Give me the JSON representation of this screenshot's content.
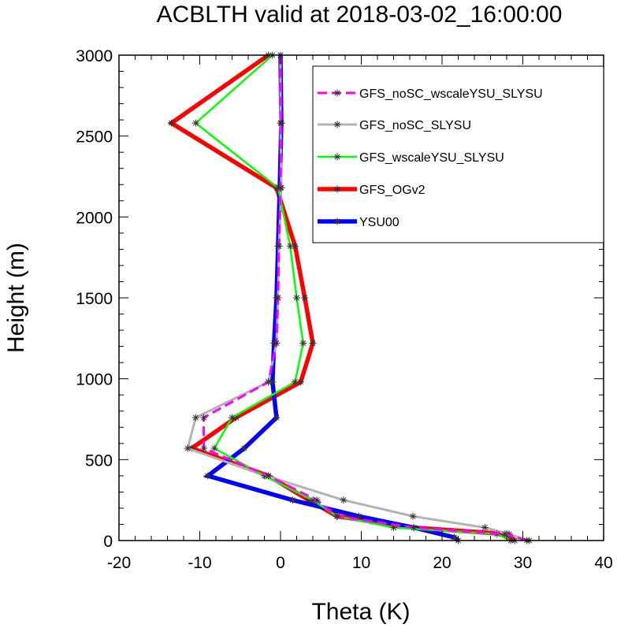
{
  "chart_data": {
    "type": "line",
    "title": "ACBLTH valid at 2018-03-02_16:00:00",
    "xlabel": "Theta (K)",
    "ylabel": "Height (m)",
    "xlim": [
      -20,
      40
    ],
    "ylim": [
      0,
      3000
    ],
    "xticks": [
      -20,
      -10,
      0,
      10,
      20,
      30,
      40
    ],
    "yticks": [
      0,
      500,
      1000,
      1500,
      2000,
      2500,
      3000
    ],
    "xtick_labels": [
      "-20",
      "-10",
      "0",
      "10",
      "20",
      "30",
      "40"
    ],
    "ytick_labels": [
      "0",
      "500",
      "1000",
      "1500",
      "2000",
      "2500",
      "3000"
    ],
    "grid": false,
    "legend_position": "top-right",
    "marker": "asterisk",
    "series": [
      {
        "name": "GFS_noSC_wscaleYSU_SLYSU",
        "color": "#ff00ff",
        "style": "dashed",
        "x": [
          30.5,
          27.8,
          16.5,
          7.0,
          4.5,
          -1.5,
          -9.5,
          -9.5,
          -1.5,
          -0.5,
          -0.3,
          -0.2,
          0.0,
          0.1,
          0.0
        ],
        "y": [
          0,
          40,
          80,
          150,
          250,
          400,
          570,
          760,
          980,
          1220,
          1500,
          1820,
          2180,
          2580,
          3000
        ]
      },
      {
        "name": "GFS_noSC_SLYSU",
        "color": "#b3b3b3",
        "style": "solid",
        "x": [
          30.8,
          28.3,
          25.3,
          16.4,
          7.8,
          -1.8,
          -11.5,
          -10.5,
          -1.5,
          -0.5,
          -0.3,
          -0.2,
          0.1,
          0.0,
          0.0
        ],
        "y": [
          0,
          40,
          80,
          150,
          250,
          400,
          570,
          760,
          980,
          1220,
          1500,
          1820,
          2180,
          2580,
          3000
        ]
      },
      {
        "name": "GFS_wscaleYSU_SLYSU",
        "color": "#00ff00",
        "style": "solid",
        "x": [
          28.5,
          26.8,
          14.0,
          7.0,
          4.0,
          -2.0,
          -8.2,
          -6.0,
          1.8,
          2.8,
          2.0,
          1.2,
          -0.3,
          -10.5,
          -1.0
        ],
        "y": [
          0,
          40,
          80,
          150,
          250,
          400,
          570,
          760,
          980,
          1220,
          1500,
          1820,
          2180,
          2580,
          3000
        ]
      },
      {
        "name": "GFS_OGv2",
        "color": "#ff0000",
        "style": "solid",
        "x": [
          29.0,
          28.0,
          16.5,
          7.0,
          3.5,
          -1.5,
          -11.0,
          -5.5,
          2.5,
          4.0,
          3.0,
          1.8,
          -0.5,
          -13.5,
          -1.5
        ],
        "y": [
          0,
          40,
          80,
          150,
          250,
          400,
          570,
          760,
          980,
          1220,
          1500,
          1820,
          2180,
          2580,
          3000
        ]
      },
      {
        "name": "YSU00",
        "color": "#0000ff",
        "style": "solid",
        "x": [
          22.0,
          21.5,
          16.5,
          9.7,
          1.5,
          -9.0,
          -4.5,
          -0.5,
          -1.0,
          -0.8,
          -0.5,
          -0.3,
          -0.1,
          0.1,
          0.0
        ],
        "y": [
          0,
          20,
          80,
          150,
          250,
          400,
          570,
          760,
          980,
          1220,
          1500,
          1820,
          2180,
          2580,
          3000
        ]
      }
    ]
  }
}
